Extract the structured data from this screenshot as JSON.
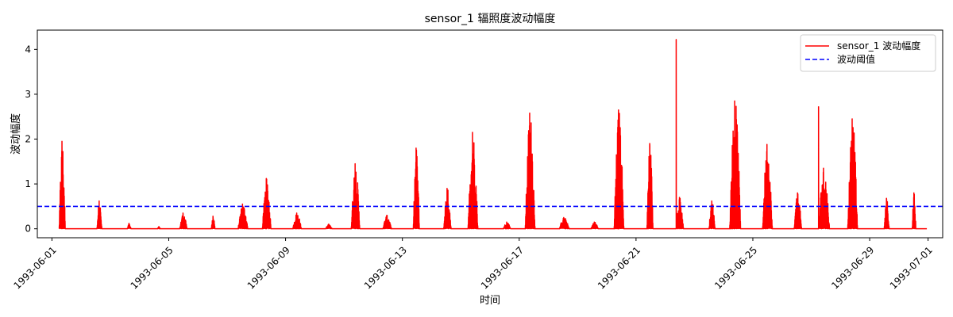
{
  "chart_data": {
    "type": "line",
    "title": "sensor_1 辐照度波动幅度",
    "xlabel": "时间",
    "ylabel": "波动幅度",
    "xlim": [
      "1993-05-31T12:00",
      "1993-07-01T12:00"
    ],
    "ylim": [
      -0.2,
      4.43
    ],
    "grid": false,
    "legend_position": "upper right",
    "x_ticks": [
      "1993-06-01",
      "1993-06-05",
      "1993-06-09",
      "1993-06-13",
      "1993-06-17",
      "1993-06-21",
      "1993-06-25",
      "1993-06-29",
      "1993-07-01"
    ],
    "y_ticks": [
      0,
      1,
      2,
      3,
      4
    ],
    "series": [
      {
        "name": "sensor_1 波动幅度",
        "color": "#ff0000",
        "style": "solid",
        "daily_bursts": [
          {
            "date": "1993-06-01",
            "start": 6,
            "end": 11,
            "peak": 1.95
          },
          {
            "date": "1993-06-02",
            "start": 13,
            "end": 17,
            "peak": 0.62
          },
          {
            "date": "1993-06-03",
            "start": 14,
            "end": 17,
            "peak": 0.12
          },
          {
            "date": "1993-06-04",
            "start": 15,
            "end": 17,
            "peak": 0.05
          },
          {
            "date": "1993-06-05",
            "start": 9,
            "end": 15,
            "peak": 0.35
          },
          {
            "date": "1993-06-06",
            "start": 11,
            "end": 14,
            "peak": 0.28
          },
          {
            "date": "1993-06-07",
            "start": 9,
            "end": 17,
            "peak": 0.55
          },
          {
            "date": "1993-06-08",
            "start": 5,
            "end": 12,
            "peak": 1.12
          },
          {
            "date": "1993-06-09",
            "start": 6,
            "end": 13,
            "peak": 0.35
          },
          {
            "date": "1993-06-10",
            "start": 9,
            "end": 14,
            "peak": 0.1
          },
          {
            "date": "1993-06-11",
            "start": 6,
            "end": 13,
            "peak": 1.45
          },
          {
            "date": "1993-06-12",
            "start": 8,
            "end": 15,
            "peak": 0.3
          },
          {
            "date": "1993-06-13",
            "start": 9,
            "end": 14,
            "peak": 1.8
          },
          {
            "date": "1993-06-14",
            "start": 10,
            "end": 16,
            "peak": 0.9
          },
          {
            "date": "1993-06-15",
            "start": 6,
            "end": 14,
            "peak": 2.15
          },
          {
            "date": "1993-06-16",
            "start": 11,
            "end": 17,
            "peak": 0.15
          },
          {
            "date": "1993-06-17",
            "start": 5,
            "end": 13,
            "peak": 2.58
          },
          {
            "date": "1993-06-18",
            "start": 9,
            "end": 17,
            "peak": 0.25
          },
          {
            "date": "1993-06-19",
            "start": 11,
            "end": 17,
            "peak": 0.15
          },
          {
            "date": "1993-06-20",
            "start": 6,
            "end": 14,
            "peak": 2.65
          },
          {
            "date": "1993-06-21",
            "start": 9,
            "end": 14,
            "peak": 1.9
          },
          {
            "date": "1993-06-22",
            "start": 9,
            "end": 15,
            "peak": 0.7
          },
          {
            "date": "1993-06-23",
            "start": 12,
            "end": 17,
            "peak": 0.62
          },
          {
            "date": "1993-06-24",
            "start": 5,
            "end": 14,
            "peak": 2.85
          },
          {
            "date": "1993-06-25",
            "start": 8,
            "end": 16,
            "peak": 1.88
          },
          {
            "date": "1993-06-26",
            "start": 10,
            "end": 16,
            "peak": 0.8
          },
          {
            "date": "1993-06-27",
            "start": 6,
            "end": 15,
            "peak": 1.35
          },
          {
            "date": "1993-06-28",
            "start": 6,
            "end": 14,
            "peak": 2.45
          },
          {
            "date": "1993-06-29",
            "start": 12,
            "end": 16,
            "peak": 0.68
          },
          {
            "date": "1993-06-30",
            "start": 11,
            "end": 14,
            "peak": 0.8
          }
        ],
        "spike_points": [
          {
            "x": "1993-06-22T09:00",
            "y": 4.22
          },
          {
            "x": "1993-06-27T06:00",
            "y": 2.72
          }
        ],
        "end_point": {
          "x": "1993-06-30T23:00",
          "y": 0.0
        }
      },
      {
        "name": "波动阈值",
        "color": "#0000ff",
        "style": "dashed",
        "threshold": 0.5
      }
    ]
  }
}
